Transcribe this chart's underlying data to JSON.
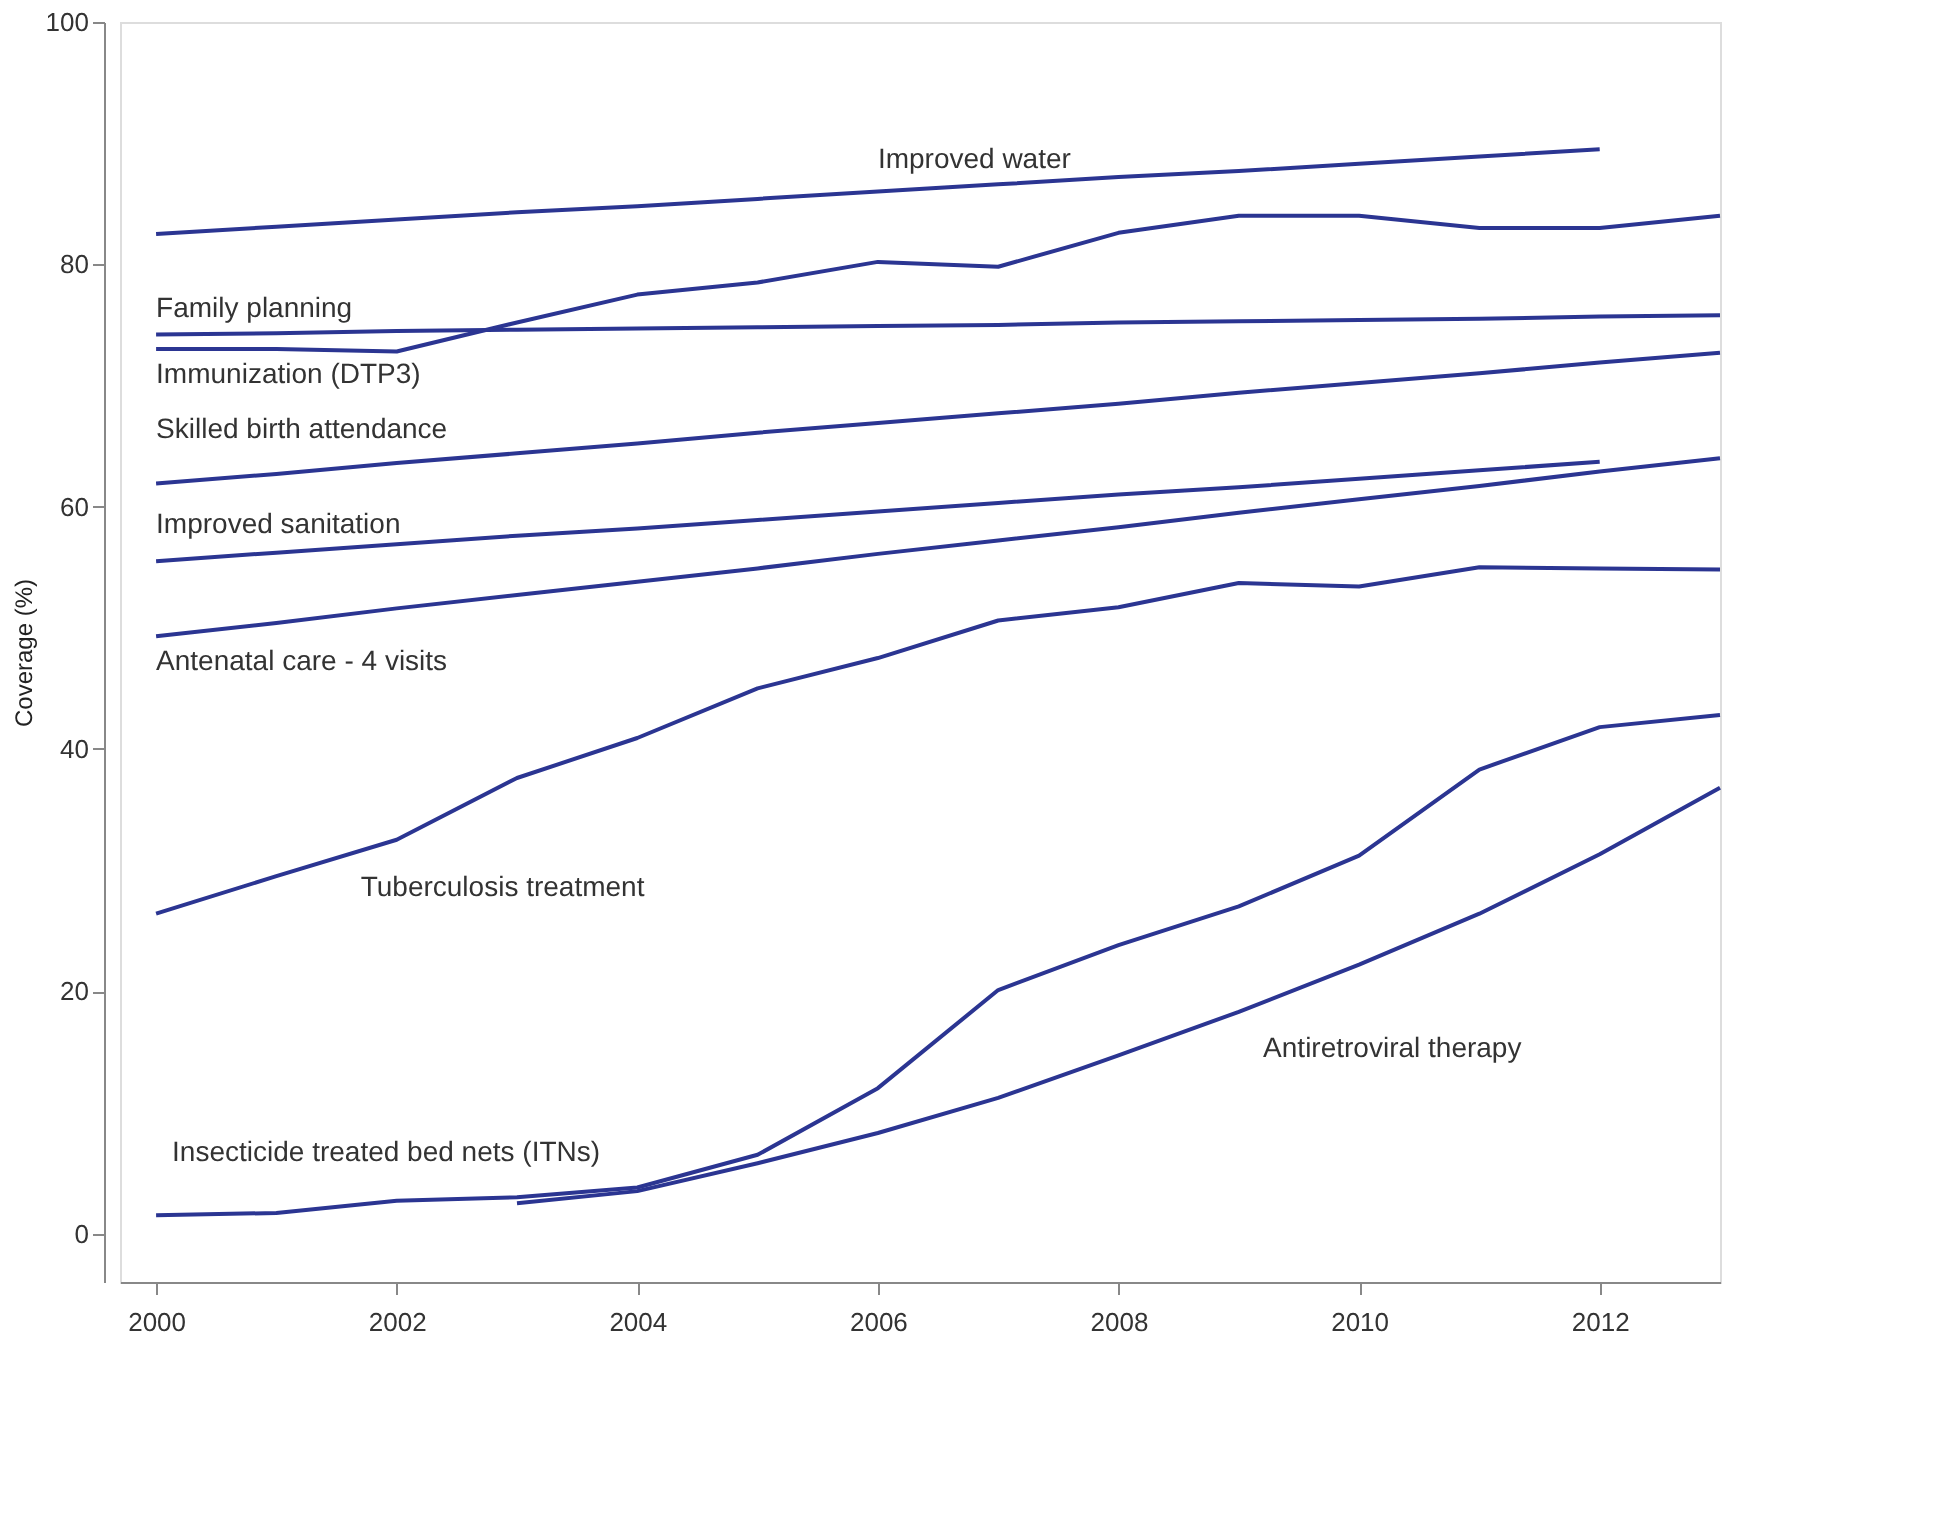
{
  "chart_data": {
    "type": "line",
    "ylabel": "Coverage (%)",
    "x": [
      2000,
      2001,
      2002,
      2003,
      2004,
      2005,
      2006,
      2007,
      2008,
      2009,
      2010,
      2011,
      2012,
      2013
    ],
    "xlim": [
      1999.7,
      2013
    ],
    "xticks": [
      2000,
      2002,
      2004,
      2006,
      2008,
      2010,
      2012
    ],
    "ylim": [
      -4,
      100
    ],
    "yticks": [
      0,
      20,
      40,
      60,
      80,
      100
    ],
    "grid": false,
    "legend": false,
    "marker": "none",
    "line_style": "solid",
    "series": [
      {
        "name": "Improved water",
        "color": "#2b3592",
        "values": [
          82.5,
          83.1,
          83.7,
          84.3,
          84.8,
          85.4,
          86.0,
          86.6,
          87.2,
          87.7,
          88.3,
          88.9,
          89.5,
          null
        ]
      },
      {
        "name": "Immunization (DTP3)",
        "color": "#2b3592",
        "values": [
          73.0,
          73.0,
          72.8,
          75.2,
          77.5,
          78.5,
          80.2,
          79.8,
          82.6,
          84.0,
          84.0,
          83.0,
          83.0,
          84.0
        ]
      },
      {
        "name": "Family planning",
        "color": "#2b3592",
        "values": [
          74.2,
          74.3,
          74.5,
          74.6,
          74.7,
          74.8,
          74.9,
          75.0,
          75.2,
          75.3,
          75.4,
          75.5,
          75.7,
          75.8
        ]
      },
      {
        "name": "Skilled birth attendance",
        "color": "#2b3592",
        "values": [
          61.9,
          62.7,
          63.6,
          64.4,
          65.2,
          66.1,
          66.9,
          67.7,
          68.5,
          69.4,
          70.2,
          71.0,
          71.9,
          72.7
        ]
      },
      {
        "name": "Improved sanitation",
        "color": "#2b3592",
        "values": [
          55.5,
          56.2,
          56.9,
          57.6,
          58.2,
          58.9,
          59.6,
          60.3,
          61.0,
          61.6,
          62.3,
          63.0,
          63.7,
          null
        ]
      },
      {
        "name": "Antenatal care - 4 visits",
        "color": "#2b3592",
        "values": [
          49.3,
          50.4,
          51.6,
          52.7,
          53.8,
          54.9,
          56.1,
          57.2,
          58.3,
          59.5,
          60.6,
          61.7,
          62.9,
          64.0
        ]
      },
      {
        "name": "Tuberculosis treatment",
        "color": "#2b3592",
        "values": [
          26.4,
          29.5,
          32.5,
          37.6,
          40.9,
          45.0,
          47.5,
          50.6,
          51.7,
          53.7,
          53.4,
          55.0,
          54.9,
          54.8
        ]
      },
      {
        "name": "Insecticide treated bed nets  (ITNs)",
        "color": "#2b3592",
        "values": [
          1.5,
          1.7,
          2.7,
          3.0,
          3.8,
          6.5,
          12.0,
          20.1,
          23.8,
          27.0,
          31.2,
          38.3,
          41.8,
          42.8
        ]
      },
      {
        "name": "Antiretroviral therapy",
        "color": "#2b3592",
        "values": [
          null,
          null,
          null,
          2.5,
          3.5,
          5.8,
          8.3,
          11.2,
          14.7,
          18.3,
          22.2,
          26.4,
          31.3,
          36.8
        ]
      }
    ]
  }
}
